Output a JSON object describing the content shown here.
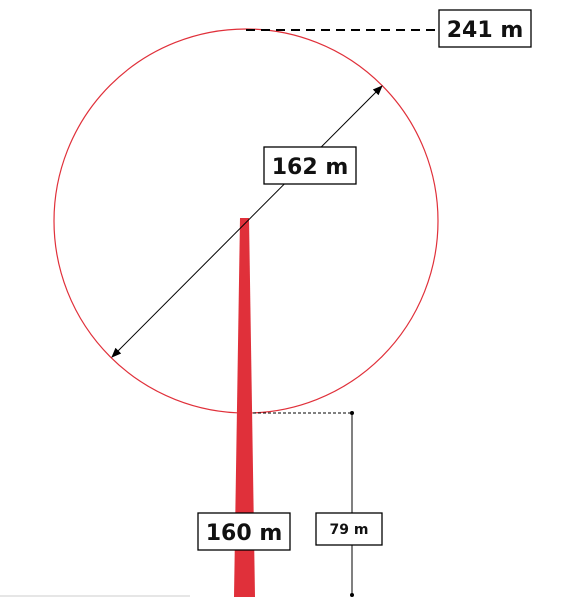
{
  "diagram": {
    "labels": {
      "tip_height": "241 m",
      "rotor_diameter": "162 m",
      "hub_height": "160 m",
      "ground_clearance": "79 m"
    },
    "colors": {
      "tower": "#e0303a",
      "rotor_circle": "#e0303a",
      "lines": "#000000"
    }
  }
}
